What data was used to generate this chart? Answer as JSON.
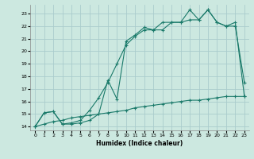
{
  "xlabel": "Humidex (Indice chaleur)",
  "bg_color": "#cce8e0",
  "grid_color": "#aacccc",
  "line_color": "#1a7a6a",
  "xlim": [
    -0.5,
    23.5
  ],
  "ylim": [
    13.7,
    23.7
  ],
  "yticks": [
    14,
    15,
    16,
    17,
    18,
    19,
    20,
    21,
    22,
    23
  ],
  "xticks": [
    0,
    1,
    2,
    3,
    4,
    5,
    6,
    7,
    8,
    9,
    10,
    11,
    12,
    13,
    14,
    15,
    16,
    17,
    18,
    19,
    20,
    21,
    22,
    23
  ],
  "line1_x": [
    0,
    1,
    2,
    3,
    4,
    5,
    6,
    7,
    8,
    9,
    10,
    11,
    12,
    13,
    14,
    15,
    16,
    17,
    18,
    19,
    20,
    21,
    22,
    23
  ],
  "line1_y": [
    14.0,
    15.1,
    15.2,
    14.2,
    14.2,
    14.3,
    14.5,
    15.0,
    17.7,
    16.2,
    20.8,
    21.3,
    21.9,
    21.7,
    22.3,
    22.3,
    22.3,
    23.3,
    22.5,
    23.3,
    22.3,
    22.0,
    22.0,
    17.5
  ],
  "line2_x": [
    0,
    1,
    2,
    3,
    4,
    5,
    6,
    7,
    8,
    9,
    10,
    11,
    12,
    13,
    14,
    15,
    16,
    17,
    18,
    19,
    20,
    21,
    22,
    23
  ],
  "line2_y": [
    14.0,
    15.1,
    15.2,
    14.2,
    14.3,
    14.5,
    15.3,
    16.3,
    17.5,
    19.0,
    20.5,
    21.2,
    21.7,
    21.7,
    21.7,
    22.3,
    22.3,
    22.5,
    22.5,
    23.3,
    22.3,
    22.0,
    22.3,
    16.4
  ],
  "line3_x": [
    0,
    1,
    2,
    3,
    4,
    5,
    6,
    7,
    8,
    9,
    10,
    11,
    12,
    13,
    14,
    15,
    16,
    17,
    18,
    19,
    20,
    21,
    22,
    23
  ],
  "line3_y": [
    14.0,
    14.2,
    14.4,
    14.5,
    14.7,
    14.8,
    14.9,
    15.0,
    15.1,
    15.2,
    15.3,
    15.5,
    15.6,
    15.7,
    15.8,
    15.9,
    16.0,
    16.1,
    16.1,
    16.2,
    16.3,
    16.4,
    16.4,
    16.4
  ]
}
